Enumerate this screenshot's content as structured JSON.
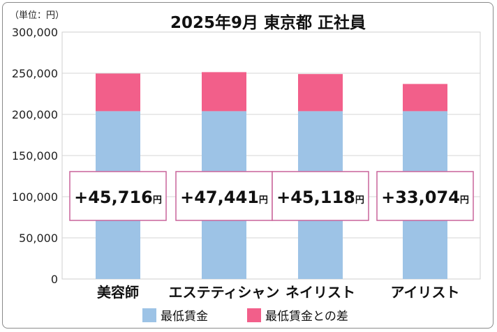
{
  "chart_data": {
    "type": "bar",
    "stacked": true,
    "title": "2025年9月 東京都 正社員",
    "unit_label": "（単位：円）",
    "categories": [
      "美容師",
      "エステティシャン",
      "ネイリスト",
      "アイリスト"
    ],
    "series": [
      {
        "name": "最低賃金",
        "color": "#9dc3e6",
        "values": [
          203900,
          203900,
          203900,
          203900
        ]
      },
      {
        "name": "最低賃金との差",
        "color": "#f25f8a",
        "values": [
          45716,
          47441,
          45118,
          33074
        ]
      }
    ],
    "data_labels": [
      "+45,716",
      "+47,441",
      "+45,118",
      "+33,074"
    ],
    "data_label_unit": "円",
    "yticks": [
      "0",
      "50,000",
      "100,000",
      "150,000",
      "200,000",
      "250,000",
      "300,000"
    ],
    "ylim": [
      0,
      300000
    ],
    "grid": true,
    "legend_position": "bottom"
  }
}
